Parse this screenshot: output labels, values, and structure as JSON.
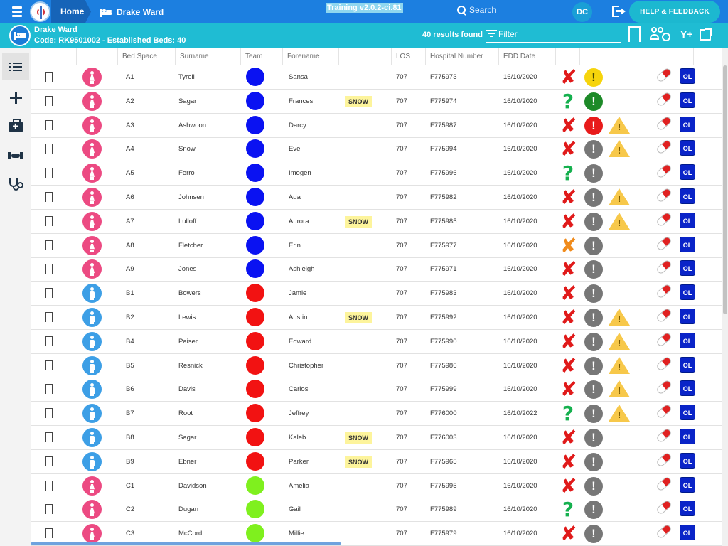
{
  "topbar": {
    "home_label": "Home",
    "ward_label": "Drake Ward",
    "version": "Training v2.0.2-ci.81",
    "search_placeholder": "Search",
    "user_initials": "DC",
    "help_label": "HELP & FEEDBACK"
  },
  "subheader": {
    "ward_name": "Drake Ward",
    "ward_code": "Code: RK9501002 - Established Beds: 40",
    "results": "40 results found",
    "filter_placeholder": "Filter"
  },
  "columns": [
    "",
    "",
    "Bed Space",
    "Surname",
    "Team",
    "Forename",
    "",
    "LOS",
    "Hospital Number",
    "EDD Date"
  ],
  "colors": {
    "primary": "#1c7fe0",
    "secondary": "#1fbcd3",
    "female": "#ec4a82",
    "male": "#3d9fe6",
    "team_blue": "#0a12f2",
    "team_red": "#f21212",
    "team_green": "#7ff01e"
  },
  "rows": [
    {
      "gender": "female",
      "bed": "A1",
      "surname": "Tyrell",
      "team": "blue",
      "forename": "Sansa",
      "snow": "",
      "los": "707",
      "hosp": "F775973",
      "edd": "16/10/2020",
      "status": "x",
      "alert": "yellow",
      "warning": false
    },
    {
      "gender": "female",
      "bed": "A2",
      "surname": "Sagar",
      "team": "blue",
      "forename": "Frances",
      "snow": "SNOW",
      "los": "707",
      "hosp": "F775974",
      "edd": "16/10/2020",
      "status": "q",
      "alert": "green",
      "warning": false
    },
    {
      "gender": "female",
      "bed": "A3",
      "surname": "Ashwoon",
      "team": "blue",
      "forename": "Darcy",
      "snow": "",
      "los": "707",
      "hosp": "F775987",
      "edd": "16/10/2020",
      "status": "x",
      "alert": "red",
      "warning": true
    },
    {
      "gender": "female",
      "bed": "A4",
      "surname": "Snow",
      "team": "blue",
      "forename": "Eve",
      "snow": "",
      "los": "707",
      "hosp": "F775994",
      "edd": "16/10/2020",
      "status": "x",
      "alert": "grey",
      "warning": true
    },
    {
      "gender": "female",
      "bed": "A5",
      "surname": "Ferro",
      "team": "blue",
      "forename": "Imogen",
      "snow": "",
      "los": "707",
      "hosp": "F775996",
      "edd": "16/10/2020",
      "status": "q",
      "alert": "grey",
      "warning": false
    },
    {
      "gender": "female",
      "bed": "A6",
      "surname": "Johnsen",
      "team": "blue",
      "forename": "Ada",
      "snow": "",
      "los": "707",
      "hosp": "F775982",
      "edd": "16/10/2020",
      "status": "x",
      "alert": "grey",
      "warning": true
    },
    {
      "gender": "female",
      "bed": "A7",
      "surname": "Lulloff",
      "team": "blue",
      "forename": "Aurora",
      "snow": "SNOW",
      "los": "707",
      "hosp": "F775985",
      "edd": "16/10/2020",
      "status": "x",
      "alert": "grey",
      "warning": true
    },
    {
      "gender": "female",
      "bed": "A8",
      "surname": "Fletcher",
      "team": "blue",
      "forename": "Erin",
      "snow": "",
      "los": "707",
      "hosp": "F775977",
      "edd": "16/10/2020",
      "status": "xo",
      "alert": "grey",
      "warning": false
    },
    {
      "gender": "female",
      "bed": "A9",
      "surname": "Jones",
      "team": "blue",
      "forename": "Ashleigh",
      "snow": "",
      "los": "707",
      "hosp": "F775971",
      "edd": "16/10/2020",
      "status": "x",
      "alert": "grey",
      "warning": false
    },
    {
      "gender": "male",
      "bed": "B1",
      "surname": "Bowers",
      "team": "red",
      "forename": "Jamie",
      "snow": "",
      "los": "707",
      "hosp": "F775983",
      "edd": "16/10/2020",
      "status": "x",
      "alert": "grey",
      "warning": false
    },
    {
      "gender": "male",
      "bed": "B2",
      "surname": "Lewis",
      "team": "red",
      "forename": "Austin",
      "snow": "SNOW",
      "los": "707",
      "hosp": "F775992",
      "edd": "16/10/2020",
      "status": "x",
      "alert": "grey",
      "warning": true
    },
    {
      "gender": "male",
      "bed": "B4",
      "surname": "Paiser",
      "team": "red",
      "forename": "Edward",
      "snow": "",
      "los": "707",
      "hosp": "F775990",
      "edd": "16/10/2020",
      "status": "x",
      "alert": "grey",
      "warning": true
    },
    {
      "gender": "male",
      "bed": "B5",
      "surname": "Resnick",
      "team": "red",
      "forename": "Christopher",
      "snow": "",
      "los": "707",
      "hosp": "F775986",
      "edd": "16/10/2020",
      "status": "x",
      "alert": "grey",
      "warning": true
    },
    {
      "gender": "male",
      "bed": "B6",
      "surname": "Davis",
      "team": "red",
      "forename": "Carlos",
      "snow": "",
      "los": "707",
      "hosp": "F775999",
      "edd": "16/10/2020",
      "status": "x",
      "alert": "grey",
      "warning": true
    },
    {
      "gender": "male",
      "bed": "B7",
      "surname": "Root",
      "team": "red",
      "forename": "Jeffrey",
      "snow": "",
      "los": "707",
      "hosp": "F776000",
      "edd": "16/10/2022",
      "status": "q",
      "alert": "grey",
      "warning": true
    },
    {
      "gender": "male",
      "bed": "B8",
      "surname": "Sagar",
      "team": "red",
      "forename": "Kaleb",
      "snow": "SNOW",
      "los": "707",
      "hosp": "F776003",
      "edd": "16/10/2020",
      "status": "x",
      "alert": "grey",
      "warning": false
    },
    {
      "gender": "male",
      "bed": "B9",
      "surname": "Ebner",
      "team": "red",
      "forename": "Parker",
      "snow": "SNOW",
      "los": "707",
      "hosp": "F775965",
      "edd": "16/10/2020",
      "status": "x",
      "alert": "grey",
      "warning": false
    },
    {
      "gender": "female",
      "bed": "C1",
      "surname": "Davidson",
      "team": "green",
      "forename": "Amelia",
      "snow": "",
      "los": "707",
      "hosp": "F775995",
      "edd": "16/10/2020",
      "status": "x",
      "alert": "grey",
      "warning": false
    },
    {
      "gender": "female",
      "bed": "C2",
      "surname": "Dugan",
      "team": "green",
      "forename": "Gail",
      "snow": "",
      "los": "707",
      "hosp": "F775989",
      "edd": "16/10/2020",
      "status": "q",
      "alert": "grey",
      "warning": false
    },
    {
      "gender": "female",
      "bed": "C3",
      "surname": "McCord",
      "team": "green",
      "forename": "Millie",
      "snow": "",
      "los": "707",
      "hosp": "F775979",
      "edd": "16/10/2020",
      "status": "x",
      "alert": "grey",
      "warning": false
    }
  ],
  "row_badge": "OL"
}
